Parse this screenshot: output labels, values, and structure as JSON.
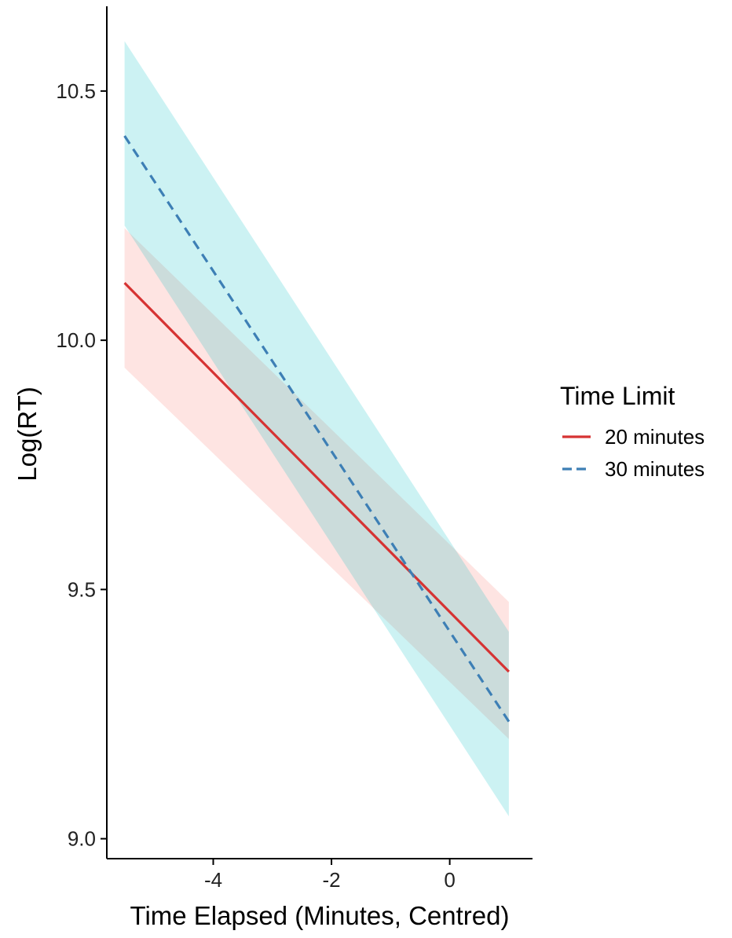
{
  "chart_data": {
    "type": "line",
    "xlabel": "Time Elapsed (Minutes, Centred)",
    "ylabel": "Log(RT)",
    "xlim": [
      -5.8,
      1.4
    ],
    "ylim": [
      8.96,
      10.67
    ],
    "x_ticks": [
      -4,
      -2,
      0
    ],
    "x_tick_labels": [
      "-4",
      "-2",
      "0"
    ],
    "y_ticks": [
      9.0,
      9.5,
      10.0,
      10.5
    ],
    "y_tick_labels": [
      "9.0",
      "9.5",
      "10.0",
      "10.5"
    ],
    "grid": false,
    "legend": {
      "title": "Time Limit",
      "placement": "right"
    },
    "series": [
      {
        "name": "20 minutes",
        "color": "#d63333",
        "band_color": "#f8766d",
        "linestyle": "solid",
        "x": [
          -5.5,
          1.0
        ],
        "y": [
          10.115,
          9.335
        ],
        "ci_lower": [
          9.945,
          9.2
        ],
        "ci_upper": [
          10.225,
          9.475
        ]
      },
      {
        "name": "30 minutes",
        "color": "#3d7fb5",
        "band_color": "#00bfc4",
        "linestyle": "dashed",
        "x": [
          -5.5,
          1.0
        ],
        "y": [
          10.41,
          9.235
        ],
        "ci_lower": [
          10.23,
          9.045
        ],
        "ci_upper": [
          10.6,
          9.415
        ]
      }
    ]
  }
}
